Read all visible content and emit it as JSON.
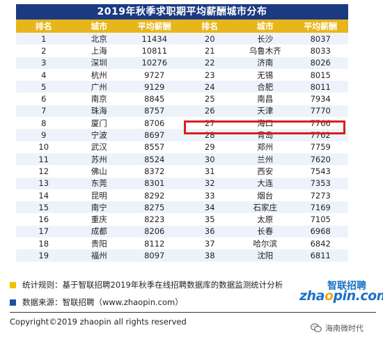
{
  "title": "2019年秋季求职期平均薪酬城市分布",
  "headers": [
    "排名",
    "城市",
    "平均薪酬",
    "排名",
    "城市",
    "平均薪酬"
  ],
  "rows": [
    [
      "1",
      "北京",
      "11434",
      "20",
      "长沙",
      "8037"
    ],
    [
      "2",
      "上海",
      "10811",
      "21",
      "乌鲁木齐",
      "8033"
    ],
    [
      "3",
      "深圳",
      "10276",
      "22",
      "济南",
      "8026"
    ],
    [
      "4",
      "杭州",
      "9727",
      "23",
      "无锡",
      "8015"
    ],
    [
      "5",
      "广州",
      "9129",
      "24",
      "合肥",
      "8011"
    ],
    [
      "6",
      "南京",
      "8845",
      "25",
      "南昌",
      "7934"
    ],
    [
      "7",
      "珠海",
      "8757",
      "26",
      "天津",
      "7770"
    ],
    [
      "8",
      "厦门",
      "8706",
      "27",
      "海口",
      "7766"
    ],
    [
      "9",
      "宁波",
      "8697",
      "28",
      "青岛",
      "7762"
    ],
    [
      "10",
      "武汉",
      "8557",
      "29",
      "郑州",
      "7759"
    ],
    [
      "11",
      "苏州",
      "8524",
      "30",
      "兰州",
      "7620"
    ],
    [
      "12",
      "佛山",
      "8372",
      "31",
      "西安",
      "7543"
    ],
    [
      "13",
      "东莞",
      "8301",
      "32",
      "大连",
      "7353"
    ],
    [
      "14",
      "昆明",
      "8292",
      "33",
      "烟台",
      "7273"
    ],
    [
      "15",
      "南宁",
      "8275",
      "34",
      "石家庄",
      "7169"
    ],
    [
      "16",
      "重庆",
      "8223",
      "35",
      "太原",
      "7105"
    ],
    [
      "17",
      "成都",
      "8206",
      "36",
      "长春",
      "6968"
    ],
    [
      "18",
      "贵阳",
      "8112",
      "37",
      "哈尔滨",
      "6842"
    ],
    [
      "19",
      "福州",
      "8097",
      "38",
      "沈阳",
      "6811"
    ]
  ],
  "highlight_row": 7,
  "notes": {
    "rule": "统计规则：基于智联招聘2019年秋季在线招聘数据库的数据监测统计分析",
    "source": "数据来源：智联招聘（www.zhaopin.com）"
  },
  "logo": {
    "cn": "智联招聘",
    "en_prefix": "zha",
    "en_dot": "o",
    "en_suffix": "pin.com",
    "icon": "zhaopin-logo"
  },
  "copyright": "Copyright©2019 zhaopin all rights reserved",
  "watermark": {
    "text": "海南微时代",
    "icon": "wechat-icon"
  },
  "colors": {
    "title_bg": "#1a3a82",
    "header_bg": "#e8b51b",
    "row_alt": "#eef3fb",
    "highlight": "#d81e1e",
    "legend_yellow": "#f2c200",
    "legend_blue": "#1f4fa3",
    "logo_blue": "#1a72c6"
  }
}
